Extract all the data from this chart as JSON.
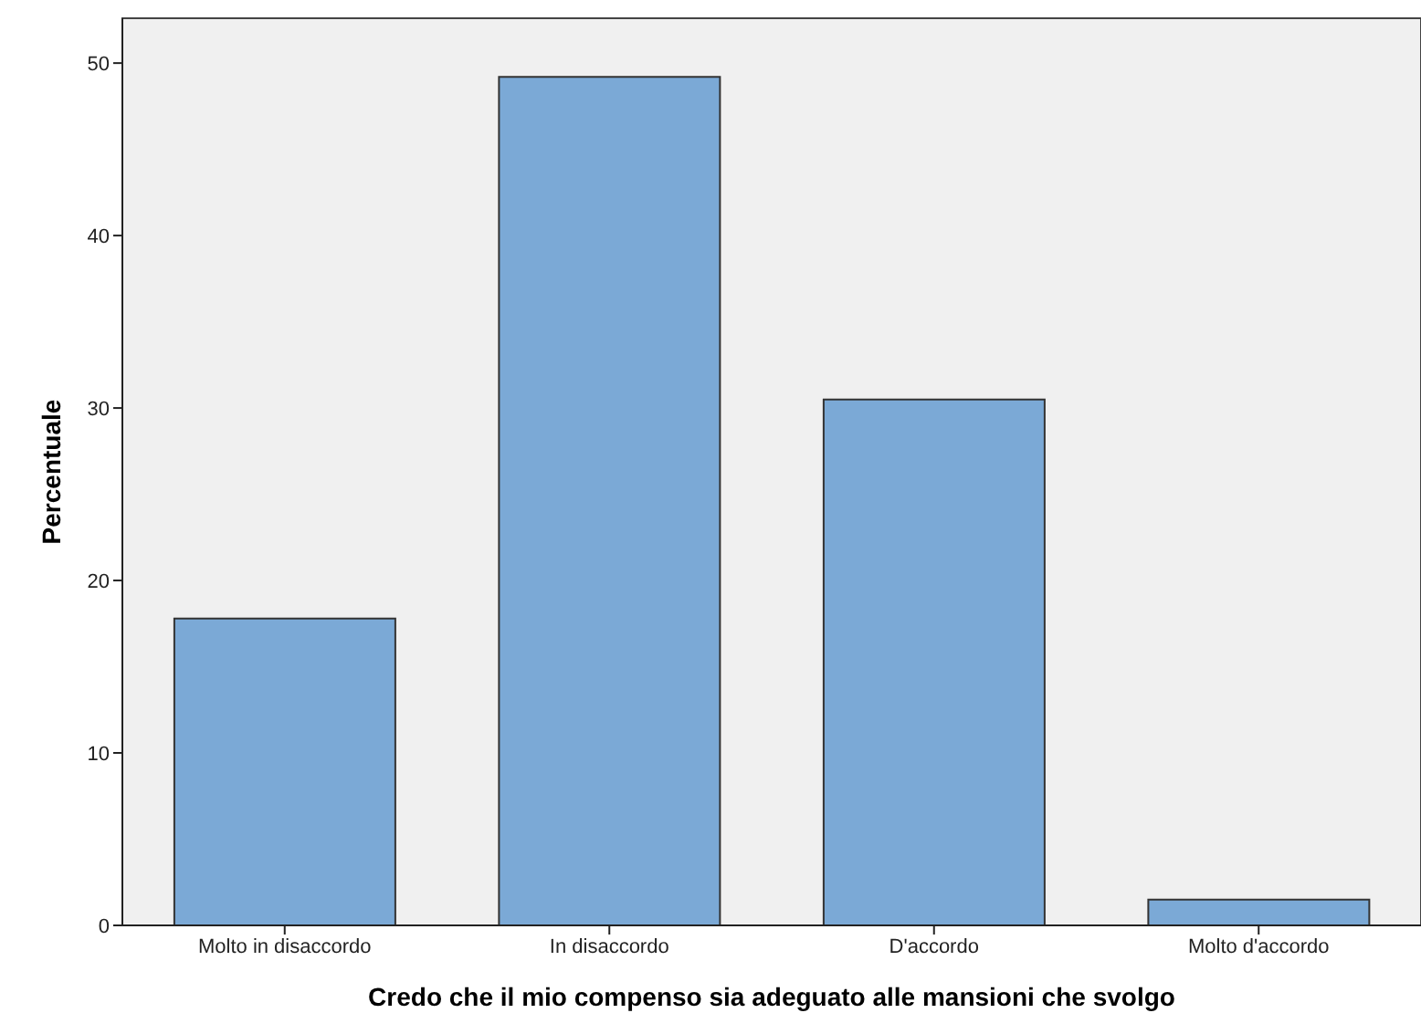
{
  "chart_data": {
    "type": "bar",
    "xlabel": "Credo che il mio compenso sia adeguato alle mansioni che svolgo",
    "ylabel": "Percentuale",
    "categories": [
      "Molto in disaccordo",
      "In disaccordo",
      "D'accordo",
      "Molto d'accordo"
    ],
    "values": [
      17.8,
      49.2,
      30.5,
      1.5
    ],
    "color": "#7ba9d6",
    "ylim": [
      0,
      52.6
    ],
    "yticks": [
      0,
      10,
      20,
      30,
      40,
      50
    ]
  }
}
